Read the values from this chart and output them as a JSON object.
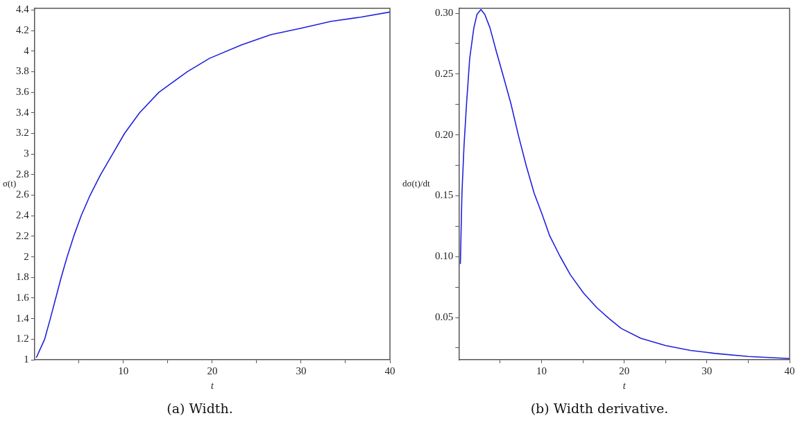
{
  "chart_data": [
    {
      "type": "line",
      "xlabel": "t",
      "ylabel": "σ(t)",
      "annotations": [
        "(a) Width."
      ],
      "x": [
        0.2,
        1.14,
        1.78,
        2.39,
        3.0,
        3.67,
        4.41,
        5.25,
        6.26,
        7.44,
        8.79,
        10.13,
        11.82,
        14.0,
        17.2,
        19.7,
        23.3,
        26.6,
        29.9,
        33.4,
        36.7,
        40
      ],
      "series": [
        {
          "color": "#2020e0",
          "values": [
            1.02,
            1.2,
            1.4,
            1.6,
            1.8,
            2.0,
            2.2,
            2.4,
            2.6,
            2.8,
            3.0,
            3.2,
            3.4,
            3.6,
            3.8,
            3.93,
            4.06,
            4.16,
            4.22,
            4.29,
            4.33,
            4.38
          ]
        }
      ],
      "xlim": [
        0,
        40
      ],
      "ylim": [
        1,
        4.416
      ],
      "xticks": [
        {
          "value": 5,
          "label": null
        },
        10,
        {
          "value": 15,
          "label": null
        },
        20,
        {
          "value": 25,
          "label": null
        },
        30,
        {
          "value": 35,
          "label": null
        },
        40
      ],
      "yticks": [
        1,
        1.2,
        1.4,
        1.6,
        1.8,
        2,
        2.2,
        2.4,
        2.6,
        2.8,
        3,
        3.2,
        3.4,
        3.6,
        3.8,
        4,
        4.2,
        4.4
      ],
      "grid": false,
      "legend": false,
      "marker": "none",
      "line_style": "solid"
    },
    {
      "type": "line",
      "xlabel": "t",
      "ylabel": "dσ(t)/dt",
      "annotations": [
        "(b) Width derivative."
      ],
      "x": [
        0.19,
        0.38,
        0.63,
        0.94,
        1.32,
        1.82,
        2.2,
        2.67,
        3.14,
        3.77,
        4.56,
        5.35,
        6.29,
        7.23,
        8.18,
        9.12,
        10.06,
        11.0,
        12.26,
        13.5,
        15.1,
        16.7,
        18.2,
        19.65,
        22,
        25,
        28,
        31,
        35,
        40
      ],
      "series": [
        {
          "color": "#2020e0",
          "values": [
            0.094,
            0.152,
            0.191,
            0.226,
            0.263,
            0.288,
            0.299,
            0.303,
            0.299,
            0.288,
            0.268,
            0.249,
            0.226,
            0.199,
            0.174,
            0.152,
            0.135,
            0.117,
            0.1,
            0.085,
            0.07,
            0.058,
            0.049,
            0.041,
            0.033,
            0.027,
            0.023,
            0.0205,
            0.018,
            0.0163
          ]
        }
      ],
      "xlim": [
        0,
        40
      ],
      "ylim": [
        0.0153,
        0.304
      ],
      "xticks": [
        {
          "value": 5,
          "label": null
        },
        10,
        {
          "value": 15,
          "label": null
        },
        20,
        {
          "value": 25,
          "label": null
        },
        30,
        {
          "value": 35,
          "label": null
        },
        40
      ],
      "yticks": [
        {
          "value": 0.025,
          "label": null
        },
        0.05,
        {
          "value": 0.075,
          "label": null
        },
        {
          "value": 0.1,
          "label": "0.10"
        },
        {
          "value": 0.125,
          "label": null
        },
        0.15,
        {
          "value": 0.175,
          "label": null
        },
        {
          "value": 0.2,
          "label": "0.20"
        },
        {
          "value": 0.225,
          "label": null
        },
        0.25,
        {
          "value": 0.275,
          "label": null
        },
        {
          "value": 0.3,
          "label": "0.30"
        }
      ],
      "grid": false,
      "legend": false,
      "marker": "none",
      "line_style": "solid"
    }
  ]
}
